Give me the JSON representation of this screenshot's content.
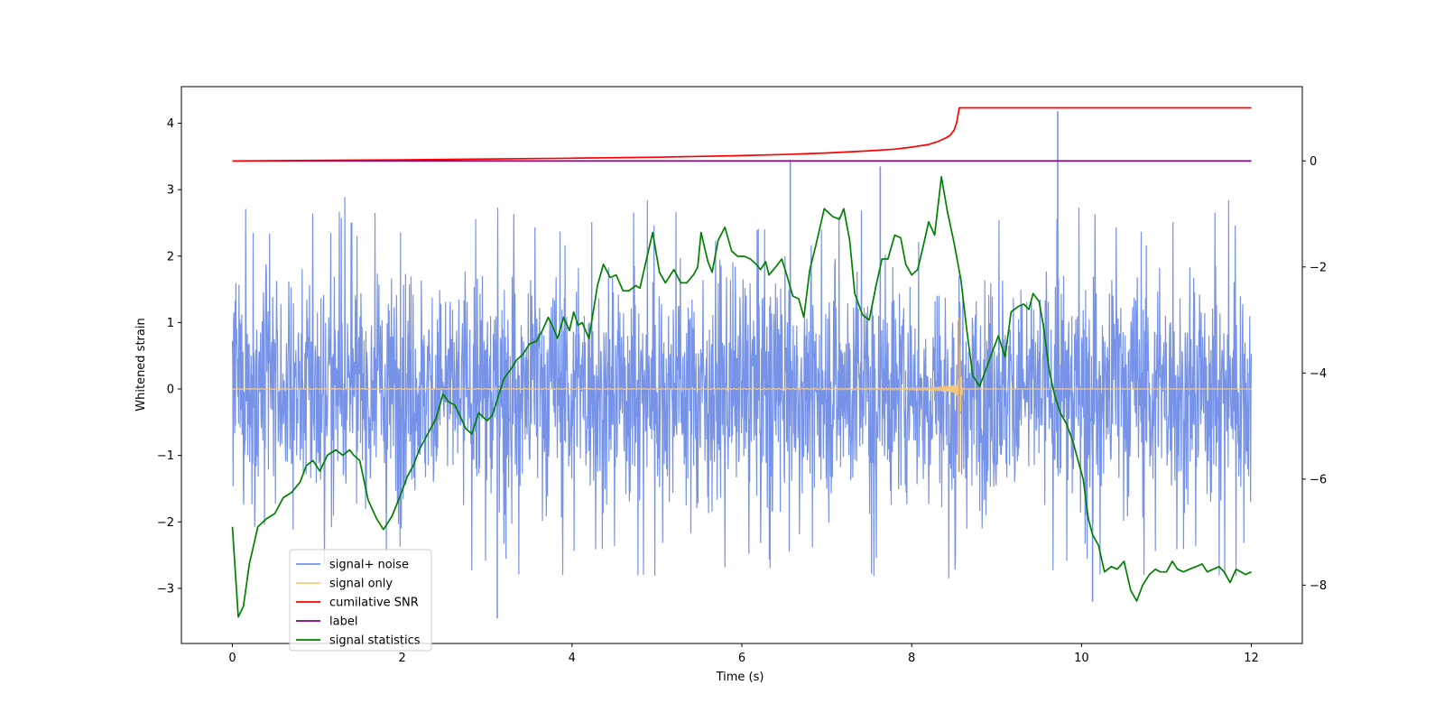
{
  "chart_data": {
    "type": "line",
    "xlabel": "Time (s)",
    "ylabel": "Whitened strain",
    "xlim": [
      -0.6,
      12.6
    ],
    "ylim": [
      -3.83,
      4.55
    ],
    "ylim_right": [
      -9.1,
      1.4
    ],
    "x_ticks": [
      0,
      2,
      4,
      6,
      8,
      10,
      12
    ],
    "y_ticks_left": [
      -3,
      -2,
      -1,
      0,
      1,
      2,
      3,
      4
    ],
    "y_ticks_right": [
      -8,
      -6,
      -4,
      -2,
      0
    ],
    "legend_location": "lower-left",
    "colors": {
      "noise": "#7793e8",
      "signal": "#f7c77a",
      "snr": "#ff0000",
      "label": "#800080",
      "stat": "#008000"
    },
    "series": [
      {
        "name": "signal+ noise",
        "axis": "left",
        "description": "Gaussian-like whitened strain, typical envelope about -2.2 to 2.7 with outliers",
        "envelope_upper": 2.7,
        "envelope_lower": -2.2,
        "spikes": [
          {
            "x": 6.57,
            "y": 3.45
          },
          {
            "x": 7.63,
            "y": 3.35
          },
          {
            "x": 9.72,
            "y": 4.18
          },
          {
            "x": 3.12,
            "y": -3.45
          },
          {
            "x": 10.13,
            "y": -3.2
          }
        ]
      },
      {
        "name": "signal only",
        "axis": "left",
        "description": "chirp waveform growing until merger at ~8.56 s",
        "x_start": 0.0,
        "x_end": 12.0,
        "merger_time": 8.56,
        "peak_amplitude": 1.08,
        "peak_min": -1.25
      },
      {
        "name": "cumilative SNR",
        "axis": "right",
        "x": [
          0.0,
          2.0,
          4.0,
          5.0,
          6.0,
          6.5,
          7.0,
          7.5,
          7.8,
          8.0,
          8.2,
          8.3,
          8.4,
          8.45,
          8.5,
          8.53,
          8.56,
          9.0,
          10.0,
          11.0,
          12.0
        ],
        "values": [
          0.0,
          0.02,
          0.05,
          0.07,
          0.1,
          0.12,
          0.15,
          0.19,
          0.22,
          0.26,
          0.31,
          0.36,
          0.43,
          0.48,
          0.58,
          0.72,
          1.0,
          1.0,
          1.0,
          1.0,
          1.0
        ]
      },
      {
        "name": "label",
        "axis": "right",
        "x": [
          0.0,
          12.0
        ],
        "values": [
          0.0,
          0.0
        ]
      },
      {
        "name": "signal statistics",
        "axis": "right",
        "x": [
          0.0,
          0.07,
          0.13,
          0.2,
          0.3,
          0.4,
          0.5,
          0.6,
          0.7,
          0.8,
          0.87,
          0.95,
          1.03,
          1.12,
          1.22,
          1.3,
          1.38,
          1.43,
          1.5,
          1.6,
          1.7,
          1.78,
          1.88,
          1.98,
          2.06,
          2.13,
          2.2,
          2.4,
          2.48,
          2.55,
          2.62,
          2.75,
          2.82,
          2.9,
          3.0,
          3.06,
          3.12,
          3.2,
          3.27,
          3.35,
          3.42,
          3.5,
          3.58,
          3.65,
          3.72,
          3.78,
          3.83,
          3.9,
          3.97,
          4.02,
          4.07,
          4.12,
          4.2,
          4.25,
          4.3,
          4.37,
          4.45,
          4.52,
          4.6,
          4.67,
          4.75,
          4.8,
          4.87,
          4.95,
          5.03,
          5.1,
          5.2,
          5.28,
          5.35,
          5.43,
          5.48,
          5.52,
          5.6,
          5.65,
          5.72,
          5.8,
          5.88,
          5.95,
          6.03,
          6.1,
          6.17,
          6.22,
          6.28,
          6.32,
          6.4,
          6.47,
          6.52,
          6.6,
          6.67,
          6.73,
          6.8,
          6.87,
          6.97,
          7.07,
          7.15,
          7.2,
          7.27,
          7.33,
          7.42,
          7.5,
          7.58,
          7.65,
          7.72,
          7.8,
          7.87,
          7.93,
          8.0,
          8.07,
          8.13,
          8.2,
          8.27,
          8.35,
          8.42,
          8.5,
          8.58,
          8.65,
          8.72,
          8.8,
          8.87,
          8.95,
          9.02,
          9.1,
          9.17,
          9.25,
          9.32,
          9.38,
          9.43,
          9.5,
          9.55,
          9.62,
          9.68,
          9.75,
          9.82,
          9.9,
          9.95,
          10.02,
          10.08,
          10.13,
          10.2,
          10.27,
          10.35,
          10.42,
          10.5,
          10.58,
          10.65,
          10.72,
          10.8,
          10.87,
          10.93,
          11.0,
          11.07,
          11.13,
          11.2,
          11.27,
          11.35,
          11.42,
          11.48,
          11.55,
          11.62,
          11.68,
          11.75,
          11.82,
          11.88,
          11.93,
          12.0
        ],
        "values": [
          -6.9,
          -8.6,
          -8.4,
          -7.6,
          -6.9,
          -6.75,
          -6.65,
          -6.35,
          -6.25,
          -6.05,
          -5.75,
          -5.65,
          -5.85,
          -5.55,
          -5.45,
          -5.55,
          -5.45,
          -5.55,
          -5.65,
          -6.4,
          -6.75,
          -6.95,
          -6.7,
          -6.3,
          -5.95,
          -5.75,
          -5.45,
          -4.85,
          -4.4,
          -4.55,
          -4.6,
          -5.05,
          -5.15,
          -4.75,
          -4.9,
          -4.8,
          -4.5,
          -4.1,
          -3.95,
          -3.75,
          -3.65,
          -3.45,
          -3.4,
          -3.2,
          -2.95,
          -3.15,
          -3.35,
          -2.95,
          -3.2,
          -2.85,
          -3.1,
          -3.05,
          -3.35,
          -2.85,
          -2.35,
          -1.95,
          -2.2,
          -2.15,
          -2.45,
          -2.45,
          -2.35,
          -2.4,
          -1.9,
          -1.35,
          -2.1,
          -2.3,
          -2.05,
          -2.3,
          -2.3,
          -2.15,
          -2.0,
          -1.35,
          -1.9,
          -2.1,
          -1.5,
          -1.25,
          -1.7,
          -1.8,
          -1.8,
          -1.85,
          -1.95,
          -2.05,
          -1.9,
          -2.15,
          -2.0,
          -1.85,
          -2.1,
          -2.55,
          -2.6,
          -2.95,
          -2.05,
          -1.6,
          -0.9,
          -1.05,
          -1.1,
          -0.9,
          -1.5,
          -2.5,
          -2.9,
          -3.0,
          -2.35,
          -1.85,
          -1.85,
          -1.4,
          -1.45,
          -1.95,
          -2.15,
          -2.05,
          -1.65,
          -1.15,
          -1.4,
          -0.3,
          -0.95,
          -1.55,
          -2.25,
          -3.2,
          -4.05,
          -4.25,
          -3.95,
          -3.6,
          -3.3,
          -3.7,
          -2.85,
          -2.75,
          -2.7,
          -2.8,
          -2.5,
          -2.65,
          -3.1,
          -3.95,
          -4.4,
          -4.75,
          -4.95,
          -5.3,
          -5.6,
          -6.0,
          -6.75,
          -7.05,
          -7.25,
          -7.75,
          -7.65,
          -7.7,
          -7.55,
          -8.1,
          -8.3,
          -8.0,
          -7.8,
          -7.7,
          -7.75,
          -7.75,
          -7.55,
          -7.7,
          -7.75,
          -7.7,
          -7.65,
          -7.6,
          -7.75,
          -7.7,
          -7.65,
          -7.75,
          -7.95,
          -7.7,
          -7.75,
          -7.8,
          -7.75
        ]
      }
    ]
  }
}
